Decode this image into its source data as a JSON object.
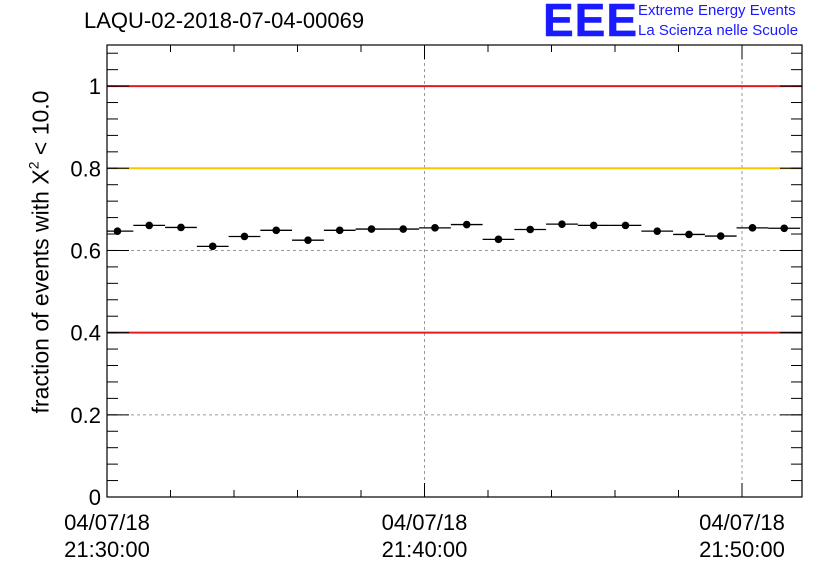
{
  "chart_data": {
    "type": "scatter",
    "title": "LAQU-02-2018-07-04-00069",
    "ylabel": "fraction of events with X² < 10.0",
    "ylabel_parts": {
      "pre": "fraction of events with X",
      "sup": "2",
      "post": " < 10.0"
    },
    "xlabel": "",
    "ylim": [
      0,
      1.1
    ],
    "xlim_minutes": [
      -0.3,
      21.6
    ],
    "y_ticks": [
      0,
      0.2,
      0.4,
      0.6,
      0.8,
      1
    ],
    "y_tick_labels": [
      "0",
      "0.2",
      "0.4",
      "0.6",
      "0.8",
      "1"
    ],
    "x_ticks_minutes": [
      0,
      10,
      20
    ],
    "x_tick_labels": [
      {
        "date": "04/07/18",
        "time": "21:30:00"
      },
      {
        "date": "04/07/18",
        "time": "21:40:00"
      },
      {
        "date": "04/07/18",
        "time": "21:50:00"
      }
    ],
    "grid": true,
    "reference_lines": [
      {
        "y": 1.0,
        "color": "#e8191f"
      },
      {
        "y": 0.8,
        "color": "#ffc400"
      },
      {
        "y": 0.4,
        "color": "#e8191f"
      }
    ],
    "bin_width_minutes": 1.0,
    "x_minutes": [
      0.33,
      1.33,
      2.33,
      3.33,
      4.33,
      5.33,
      6.33,
      7.33,
      8.33,
      9.33,
      10.33,
      11.33,
      12.33,
      13.33,
      14.33,
      15.33,
      16.33,
      17.33,
      18.33,
      19.33,
      20.33,
      21.33
    ],
    "values": [
      0.647,
      0.661,
      0.656,
      0.61,
      0.634,
      0.649,
      0.625,
      0.649,
      0.652,
      0.652,
      0.655,
      0.663,
      0.627,
      0.651,
      0.664,
      0.661,
      0.661,
      0.647,
      0.639,
      0.635,
      0.655,
      0.654
    ],
    "errors": [
      0.005,
      0.005,
      0.005,
      0.005,
      0.005,
      0.005,
      0.005,
      0.005,
      0.005,
      0.005,
      0.005,
      0.005,
      0.005,
      0.005,
      0.005,
      0.005,
      0.005,
      0.005,
      0.005,
      0.005,
      0.005,
      0.005
    ]
  },
  "logo": {
    "mark": "EEE",
    "line1": "Extreme Energy Events",
    "line2": "La Scienza nelle Scuole",
    "color": "#1a1aff"
  }
}
